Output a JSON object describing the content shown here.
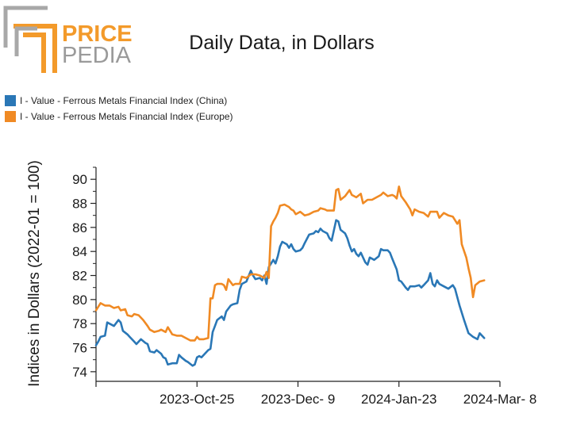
{
  "logo": {
    "line1": "PRICE",
    "line2": "PEDIA",
    "accent_color": "#f39a2a",
    "gray_color": "#8c8c8c"
  },
  "chart_data": {
    "type": "line",
    "title": "Daily Data, in Dollars",
    "ylabel": "Indices in Dollars (2022-01 = 100)",
    "xlabel": "",
    "ylim": [
      73.2,
      91.0
    ],
    "yticks": [
      74,
      76,
      78,
      80,
      82,
      84,
      86,
      88,
      90
    ],
    "xlim": [
      "2023-09-10",
      "2024-03-08"
    ],
    "xticks": [
      {
        "date": "2023-10-25",
        "label": "2023-Oct-25"
      },
      {
        "date": "2023-12-09",
        "label": "2023-Dec- 9"
      },
      {
        "date": "2024-01-23",
        "label": "2024-Jan-23"
      },
      {
        "date": "2024-03-08",
        "label": "2024-Mar- 8"
      }
    ],
    "legend_position": "top-left",
    "grid": false,
    "series": [
      {
        "name": "I - Value - Ferrous Metals Financial Index (China)",
        "color": "#2a77b6",
        "points": [
          [
            "2023-09-10",
            76.2
          ],
          [
            "2023-09-11",
            76.5
          ],
          [
            "2023-09-12",
            76.9
          ],
          [
            "2023-09-14",
            77.0
          ],
          [
            "2023-09-15",
            78.1
          ],
          [
            "2023-09-17",
            77.9
          ],
          [
            "2023-09-18",
            77.8
          ],
          [
            "2023-09-20",
            78.3
          ],
          [
            "2023-09-21",
            78.1
          ],
          [
            "2023-09-22",
            77.4
          ],
          [
            "2023-09-24",
            77.1
          ],
          [
            "2023-09-25",
            76.9
          ],
          [
            "2023-09-27",
            76.5
          ],
          [
            "2023-09-28",
            76.3
          ],
          [
            "2023-09-30",
            76.7
          ],
          [
            "2023-10-02",
            76.4
          ],
          [
            "2023-10-03",
            76.3
          ],
          [
            "2023-10-04",
            75.7
          ],
          [
            "2023-10-06",
            75.6
          ],
          [
            "2023-10-07",
            75.8
          ],
          [
            "2023-10-09",
            75.5
          ],
          [
            "2023-10-10",
            75.2
          ],
          [
            "2023-10-11",
            75.1
          ],
          [
            "2023-10-12",
            74.6
          ],
          [
            "2023-10-14",
            74.7
          ],
          [
            "2023-10-16",
            74.7
          ],
          [
            "2023-10-17",
            75.4
          ],
          [
            "2023-10-18",
            75.2
          ],
          [
            "2023-10-20",
            74.9
          ],
          [
            "2023-10-21",
            74.8
          ],
          [
            "2023-10-23",
            74.5
          ],
          [
            "2023-10-24",
            74.6
          ],
          [
            "2023-10-25",
            75.2
          ],
          [
            "2023-10-26",
            75.3
          ],
          [
            "2023-10-27",
            75.2
          ],
          [
            "2023-10-29",
            75.6
          ],
          [
            "2023-10-30",
            75.8
          ],
          [
            "2023-10-31",
            75.9
          ],
          [
            "2023-11-01",
            77.3
          ],
          [
            "2023-11-02",
            77.8
          ],
          [
            "2023-11-03",
            78.3
          ],
          [
            "2023-11-05",
            78.6
          ],
          [
            "2023-11-06",
            78.3
          ],
          [
            "2023-11-07",
            79.0
          ],
          [
            "2023-11-09",
            79.5
          ],
          [
            "2023-11-10",
            79.6
          ],
          [
            "2023-11-12",
            79.7
          ],
          [
            "2023-11-13",
            80.8
          ],
          [
            "2023-11-14",
            81.3
          ],
          [
            "2023-11-16",
            81.5
          ],
          [
            "2023-11-18",
            82.4
          ],
          [
            "2023-11-19",
            82.0
          ],
          [
            "2023-11-20",
            81.7
          ],
          [
            "2023-11-22",
            81.8
          ],
          [
            "2023-11-23",
            81.6
          ],
          [
            "2023-11-24",
            82.0
          ],
          [
            "2023-11-25",
            81.3
          ],
          [
            "2023-11-26",
            82.7
          ],
          [
            "2023-11-28",
            83.3
          ],
          [
            "2023-11-29",
            83.0
          ],
          [
            "2023-11-30",
            83.6
          ],
          [
            "2023-12-01",
            84.4
          ],
          [
            "2023-12-02",
            84.8
          ],
          [
            "2023-12-04",
            84.6
          ],
          [
            "2023-12-05",
            84.3
          ],
          [
            "2023-12-06",
            84.6
          ],
          [
            "2023-12-07",
            84.2
          ],
          [
            "2023-12-08",
            84.0
          ],
          [
            "2023-12-10",
            84.1
          ],
          [
            "2023-12-11",
            84.3
          ],
          [
            "2023-12-12",
            84.7
          ],
          [
            "2023-12-14",
            85.4
          ],
          [
            "2023-12-16",
            85.5
          ],
          [
            "2023-12-17",
            85.7
          ],
          [
            "2023-12-18",
            85.6
          ],
          [
            "2023-12-19",
            85.9
          ],
          [
            "2023-12-20",
            85.7
          ],
          [
            "2023-12-22",
            85.5
          ],
          [
            "2023-12-23",
            85.1
          ],
          [
            "2023-12-24",
            84.9
          ],
          [
            "2023-12-26",
            86.6
          ],
          [
            "2023-12-27",
            86.5
          ],
          [
            "2023-12-28",
            85.8
          ],
          [
            "2023-12-30",
            85.5
          ],
          [
            "2023-12-31",
            85.1
          ],
          [
            "2024-01-01",
            84.5
          ],
          [
            "2024-01-02",
            84.0
          ],
          [
            "2024-01-03",
            84.2
          ],
          [
            "2024-01-04",
            83.8
          ],
          [
            "2024-01-05",
            83.6
          ],
          [
            "2024-01-06",
            83.9
          ],
          [
            "2024-01-07",
            83.5
          ],
          [
            "2024-01-08",
            83.1
          ],
          [
            "2024-01-09",
            82.9
          ],
          [
            "2024-01-10",
            83.5
          ],
          [
            "2024-01-12",
            83.3
          ],
          [
            "2024-01-14",
            83.6
          ],
          [
            "2024-01-15",
            84.2
          ],
          [
            "2024-01-16",
            84.1
          ],
          [
            "2024-01-18",
            84.1
          ],
          [
            "2024-01-19",
            83.9
          ],
          [
            "2024-01-20",
            83.4
          ],
          [
            "2024-01-22",
            82.5
          ],
          [
            "2024-01-23",
            81.6
          ],
          [
            "2024-01-24",
            81.5
          ],
          [
            "2024-01-26",
            81.0
          ],
          [
            "2024-01-27",
            80.8
          ],
          [
            "2024-01-28",
            81.1
          ],
          [
            "2024-01-30",
            81.1
          ],
          [
            "2024-02-01",
            81.2
          ],
          [
            "2024-02-02",
            81.0
          ],
          [
            "2024-02-03",
            81.2
          ],
          [
            "2024-02-05",
            81.6
          ],
          [
            "2024-02-06",
            82.2
          ],
          [
            "2024-02-07",
            81.3
          ],
          [
            "2024-02-08",
            81.1
          ],
          [
            "2024-02-09",
            81.6
          ],
          [
            "2024-02-10",
            81.3
          ],
          [
            "2024-02-12",
            81.1
          ],
          [
            "2024-02-14",
            80.9
          ],
          [
            "2024-02-16",
            81.2
          ],
          [
            "2024-02-17",
            80.9
          ],
          [
            "2024-02-19",
            79.5
          ],
          [
            "2024-02-21",
            78.3
          ],
          [
            "2024-02-23",
            77.2
          ],
          [
            "2024-02-25",
            76.9
          ],
          [
            "2024-02-27",
            76.7
          ],
          [
            "2024-02-28",
            77.2
          ],
          [
            "2024-03-01",
            76.8
          ]
        ]
      },
      {
        "name": "I - Value - Ferrous Metals Financial Index (Europe)",
        "color": "#f08a24",
        "points": [
          [
            "2023-09-10",
            79.1
          ],
          [
            "2023-09-11",
            79.4
          ],
          [
            "2023-09-12",
            79.7
          ],
          [
            "2023-09-14",
            79.5
          ],
          [
            "2023-09-16",
            79.5
          ],
          [
            "2023-09-18",
            79.3
          ],
          [
            "2023-09-20",
            79.4
          ],
          [
            "2023-09-21",
            79.1
          ],
          [
            "2023-09-23",
            79.2
          ],
          [
            "2023-09-24",
            78.7
          ],
          [
            "2023-09-26",
            78.6
          ],
          [
            "2023-09-27",
            78.8
          ],
          [
            "2023-09-29",
            78.7
          ],
          [
            "2023-10-01",
            78.3
          ],
          [
            "2023-10-03",
            77.8
          ],
          [
            "2023-10-04",
            77.5
          ],
          [
            "2023-10-06",
            77.3
          ],
          [
            "2023-10-08",
            77.4
          ],
          [
            "2023-10-09",
            77.5
          ],
          [
            "2023-10-11",
            77.3
          ],
          [
            "2023-10-12",
            77.7
          ],
          [
            "2023-10-14",
            77.1
          ],
          [
            "2023-10-16",
            77.0
          ],
          [
            "2023-10-18",
            77.0
          ],
          [
            "2023-10-20",
            76.8
          ],
          [
            "2023-10-22",
            76.6
          ],
          [
            "2023-10-24",
            76.6
          ],
          [
            "2023-10-25",
            76.9
          ],
          [
            "2023-10-26",
            76.7
          ],
          [
            "2023-10-28",
            76.7
          ],
          [
            "2023-10-30",
            76.8
          ],
          [
            "2023-10-31",
            80.1
          ],
          [
            "2023-11-01",
            80.1
          ],
          [
            "2023-11-02",
            81.2
          ],
          [
            "2023-11-03",
            81.3
          ],
          [
            "2023-11-05",
            81.3
          ],
          [
            "2023-11-06",
            81.2
          ],
          [
            "2023-11-07",
            80.8
          ],
          [
            "2023-11-08",
            81.7
          ],
          [
            "2023-11-10",
            81.2
          ],
          [
            "2023-11-11",
            81.3
          ],
          [
            "2023-11-13",
            81.3
          ],
          [
            "2023-11-14",
            81.9
          ],
          [
            "2023-11-16",
            81.8
          ],
          [
            "2023-11-18",
            82.1
          ],
          [
            "2023-11-20",
            82.1
          ],
          [
            "2023-11-22",
            82.0
          ],
          [
            "2023-11-24",
            81.8
          ],
          [
            "2023-11-25",
            82.3
          ],
          [
            "2023-11-26",
            81.8
          ],
          [
            "2023-11-27",
            86.1
          ],
          [
            "2023-11-28",
            86.5
          ],
          [
            "2023-11-29",
            86.8
          ],
          [
            "2023-11-30",
            87.2
          ],
          [
            "2023-12-01",
            87.8
          ],
          [
            "2023-12-03",
            87.9
          ],
          [
            "2023-12-05",
            87.7
          ],
          [
            "2023-12-06",
            87.5
          ],
          [
            "2023-12-07",
            87.4
          ],
          [
            "2023-12-08",
            87.1
          ],
          [
            "2023-12-10",
            87.3
          ],
          [
            "2023-12-12",
            87.0
          ],
          [
            "2023-12-14",
            87.1
          ],
          [
            "2023-12-16",
            87.3
          ],
          [
            "2023-12-18",
            87.4
          ],
          [
            "2023-12-19",
            87.6
          ],
          [
            "2023-12-21",
            87.5
          ],
          [
            "2023-12-22",
            87.4
          ],
          [
            "2023-12-24",
            87.4
          ],
          [
            "2023-12-25",
            87.4
          ],
          [
            "2023-12-26",
            89.1
          ],
          [
            "2023-12-27",
            89.2
          ],
          [
            "2023-12-28",
            88.3
          ],
          [
            "2023-12-30",
            88.6
          ],
          [
            "2024-01-01",
            89.1
          ],
          [
            "2024-01-02",
            88.7
          ],
          [
            "2024-01-04",
            88.5
          ],
          [
            "2024-01-06",
            88.8
          ],
          [
            "2024-01-07",
            88.0
          ],
          [
            "2024-01-09",
            88.3
          ],
          [
            "2024-01-11",
            88.3
          ],
          [
            "2024-01-13",
            88.5
          ],
          [
            "2024-01-15",
            88.7
          ],
          [
            "2024-01-16",
            88.9
          ],
          [
            "2024-01-18",
            88.6
          ],
          [
            "2024-01-20",
            88.7
          ],
          [
            "2024-01-21",
            88.6
          ],
          [
            "2024-01-22",
            88.4
          ],
          [
            "2024-01-23",
            89.4
          ],
          [
            "2024-01-24",
            88.6
          ],
          [
            "2024-01-26",
            88.1
          ],
          [
            "2024-01-28",
            87.5
          ],
          [
            "2024-01-29",
            87.0
          ],
          [
            "2024-01-30",
            87.5
          ],
          [
            "2024-02-01",
            87.3
          ],
          [
            "2024-02-03",
            87.2
          ],
          [
            "2024-02-05",
            86.9
          ],
          [
            "2024-02-06",
            87.3
          ],
          [
            "2024-02-08",
            87.3
          ],
          [
            "2024-02-09",
            87.3
          ],
          [
            "2024-02-10",
            86.8
          ],
          [
            "2024-02-12",
            87.2
          ],
          [
            "2024-02-14",
            87.0
          ],
          [
            "2024-02-16",
            86.9
          ],
          [
            "2024-02-18",
            86.3
          ],
          [
            "2024-02-19",
            86.6
          ],
          [
            "2024-02-20",
            84.6
          ],
          [
            "2024-02-22",
            83.5
          ],
          [
            "2024-02-23",
            82.6
          ],
          [
            "2024-02-24",
            81.8
          ],
          [
            "2024-02-25",
            80.2
          ],
          [
            "2024-02-26",
            81.2
          ],
          [
            "2024-02-28",
            81.5
          ],
          [
            "2024-03-01",
            81.6
          ]
        ]
      }
    ]
  }
}
